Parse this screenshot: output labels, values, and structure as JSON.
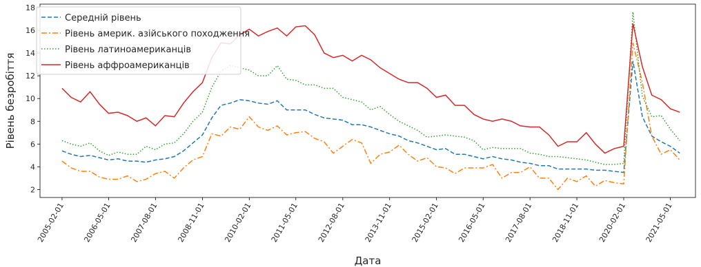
{
  "chart_data": {
    "type": "line",
    "title": "",
    "xlabel": "Дата",
    "ylabel": "Рівень безробіття",
    "ylim": [
      1.3,
      18.3
    ],
    "yticks": [
      2,
      4,
      6,
      8,
      10,
      12,
      14,
      16,
      18
    ],
    "xticks": [
      "2005-02-01",
      "2006-05-01",
      "2007-08-01",
      "2008-11-01",
      "2010-02-01",
      "2011-05-01",
      "2012-08-01",
      "2013-11-01",
      "2015-02-01",
      "2016-05-01",
      "2017-08-01",
      "2018-11-01",
      "2020-02-01",
      "2021-05-01"
    ],
    "xlim": [
      "2004-07-01",
      "2022-01-01"
    ],
    "grid": false,
    "legend_position": "top-left",
    "x": [
      "2005-02-01",
      "2005-05-01",
      "2005-08-01",
      "2005-11-01",
      "2006-02-01",
      "2006-05-01",
      "2006-08-01",
      "2006-11-01",
      "2007-02-01",
      "2007-05-01",
      "2007-08-01",
      "2007-11-01",
      "2008-02-01",
      "2008-05-01",
      "2008-08-01",
      "2008-11-01",
      "2009-02-01",
      "2009-05-01",
      "2009-08-01",
      "2009-11-01",
      "2010-02-01",
      "2010-05-01",
      "2010-08-01",
      "2010-11-01",
      "2011-02-01",
      "2011-05-01",
      "2011-08-01",
      "2011-11-01",
      "2012-02-01",
      "2012-05-01",
      "2012-08-01",
      "2012-11-01",
      "2013-02-01",
      "2013-05-01",
      "2013-08-01",
      "2013-11-01",
      "2014-02-01",
      "2014-05-01",
      "2014-08-01",
      "2014-11-01",
      "2015-02-01",
      "2015-05-01",
      "2015-08-01",
      "2015-11-01",
      "2016-02-01",
      "2016-05-01",
      "2016-08-01",
      "2016-11-01",
      "2017-02-01",
      "2017-05-01",
      "2017-08-01",
      "2017-11-01",
      "2018-02-01",
      "2018-05-01",
      "2018-08-01",
      "2018-11-01",
      "2019-02-01",
      "2019-05-01",
      "2019-08-01",
      "2019-11-01",
      "2020-02-01",
      "2020-05-01",
      "2020-08-01",
      "2020-11-01",
      "2021-02-01",
      "2021-05-01",
      "2021-08-01"
    ],
    "series": [
      {
        "name": "Середній рівень",
        "color": "#1f77b4",
        "dash": "dashed",
        "values": [
          5.4,
          5.1,
          4.9,
          5.0,
          4.8,
          4.6,
          4.7,
          4.5,
          4.5,
          4.4,
          4.6,
          4.7,
          4.9,
          5.4,
          6.1,
          6.8,
          8.3,
          9.4,
          9.6,
          9.9,
          9.8,
          9.6,
          9.5,
          9.8,
          9.0,
          9.0,
          9.0,
          8.6,
          8.3,
          8.2,
          8.1,
          7.7,
          7.7,
          7.5,
          7.2,
          6.9,
          6.7,
          6.3,
          6.1,
          5.8,
          5.5,
          5.6,
          5.1,
          5.1,
          4.9,
          4.7,
          4.9,
          4.7,
          4.6,
          4.4,
          4.3,
          4.1,
          4.1,
          3.8,
          3.8,
          3.8,
          3.8,
          3.7,
          3.7,
          3.6,
          3.5,
          13.3,
          8.4,
          6.7,
          6.2,
          5.8,
          5.2
        ]
      },
      {
        "name": "Рівень америк. азійського походження",
        "color": "#ff7f0e",
        "dash": "dashdot",
        "values": [
          4.5,
          3.9,
          3.6,
          3.6,
          3.1,
          2.9,
          2.9,
          3.2,
          2.7,
          2.9,
          3.4,
          3.6,
          3.0,
          3.9,
          4.6,
          4.9,
          6.9,
          6.7,
          7.5,
          7.3,
          8.4,
          7.5,
          7.2,
          7.6,
          6.8,
          7.0,
          7.1,
          6.5,
          6.2,
          5.2,
          5.8,
          6.4,
          6.1,
          4.3,
          5.1,
          5.3,
          5.9,
          5.1,
          4.5,
          4.8,
          4.0,
          3.9,
          3.4,
          3.9,
          3.9,
          3.9,
          4.2,
          3.0,
          3.5,
          3.5,
          4.0,
          3.0,
          3.0,
          2.0,
          3.0,
          2.7,
          3.2,
          2.3,
          2.8,
          2.6,
          2.5,
          14.9,
          11.4,
          6.7,
          5.1,
          5.5,
          4.6
        ]
      },
      {
        "name": "Рівень латиноамериканців",
        "color": "#2ca02c",
        "dash": "dotted",
        "values": [
          6.3,
          6.0,
          5.8,
          6.1,
          5.4,
          5.0,
          5.3,
          5.1,
          5.1,
          5.8,
          5.5,
          6.0,
          6.1,
          6.9,
          8.0,
          8.8,
          11.0,
          12.4,
          12.9,
          12.7,
          12.5,
          12.0,
          12.0,
          12.9,
          11.7,
          11.6,
          11.2,
          11.2,
          10.9,
          10.9,
          10.1,
          9.9,
          9.7,
          9.0,
          9.3,
          8.6,
          8.0,
          7.6,
          7.2,
          6.6,
          6.7,
          6.8,
          6.7,
          6.6,
          6.3,
          5.5,
          5.7,
          5.6,
          5.6,
          5.6,
          5.2,
          5.1,
          4.9,
          4.9,
          4.8,
          4.7,
          4.6,
          4.4,
          4.2,
          4.2,
          4.3,
          17.6,
          10.2,
          8.4,
          8.5,
          7.3,
          6.3
        ]
      },
      {
        "name": "Рівень аффроамериканців",
        "color": "#d62728",
        "dash": "solid",
        "values": [
          10.9,
          10.1,
          9.7,
          10.6,
          9.5,
          8.7,
          8.8,
          8.5,
          8.0,
          8.3,
          7.6,
          8.5,
          8.4,
          9.6,
          10.6,
          11.4,
          13.6,
          14.9,
          14.8,
          15.6,
          16.1,
          15.5,
          15.9,
          16.2,
          15.5,
          16.3,
          16.4,
          15.6,
          14.0,
          13.6,
          13.8,
          13.3,
          13.8,
          13.4,
          12.7,
          12.2,
          11.7,
          11.4,
          11.4,
          10.9,
          10.1,
          10.3,
          9.4,
          9.4,
          8.6,
          8.2,
          8.0,
          8.2,
          8.0,
          7.6,
          7.5,
          7.5,
          6.8,
          5.8,
          6.2,
          6.2,
          7.0,
          6.0,
          5.2,
          5.6,
          5.8,
          16.6,
          12.8,
          10.3,
          9.9,
          9.1,
          8.8
        ]
      }
    ]
  }
}
